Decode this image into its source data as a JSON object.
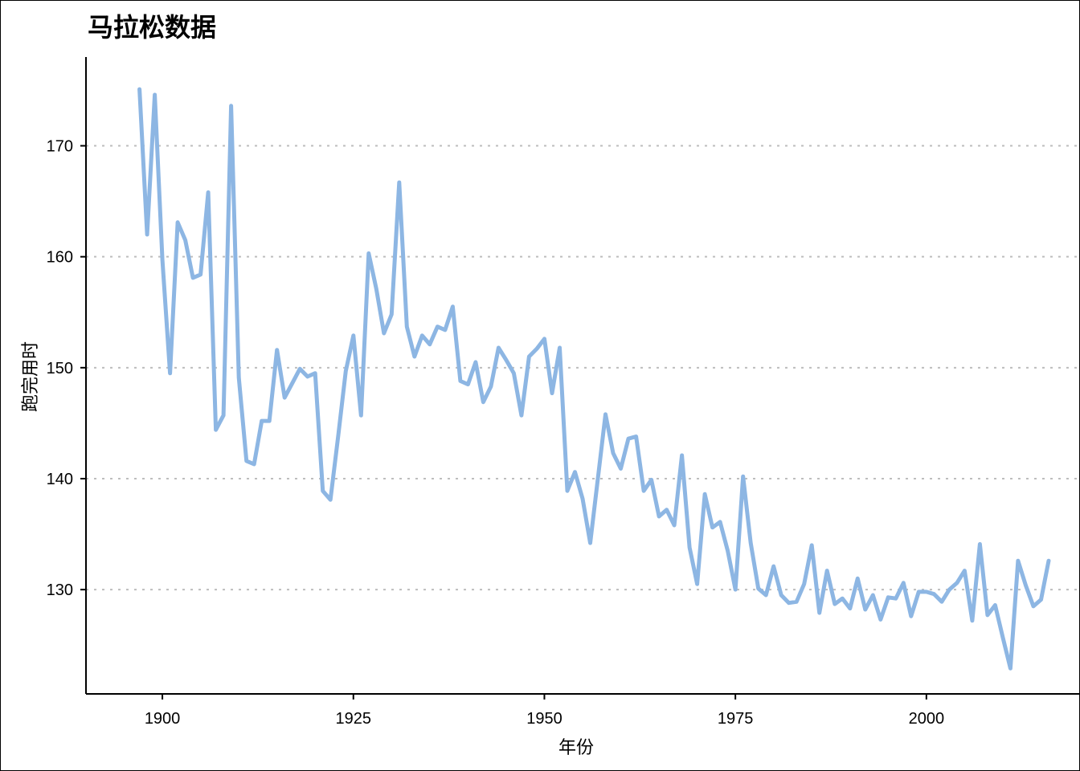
{
  "chart_data": {
    "type": "line",
    "title": "马拉松数据",
    "xlabel": "年份",
    "ylabel": "跑完用时",
    "xlim": [
      1890,
      2020
    ],
    "ylim": [
      120.6,
      178
    ],
    "x_ticks": [
      1900,
      1925,
      1950,
      1975,
      2000
    ],
    "y_ticks": [
      130,
      140,
      150,
      160,
      170
    ],
    "grid": "horizontal-dotted",
    "legend": "none",
    "color": "#8db6e3",
    "series": [
      {
        "x": [
          1897,
          1898,
          1899,
          1900,
          1901,
          1902,
          1903,
          1904,
          1905,
          1906,
          1907,
          1908,
          1909,
          1910,
          1911,
          1912,
          1913,
          1914,
          1915,
          1916,
          1917,
          1918,
          1919,
          1920,
          1921,
          1922,
          1923,
          1924,
          1925,
          1926,
          1927,
          1928,
          1929,
          1930,
          1931,
          1932,
          1933,
          1934,
          1935,
          1936,
          1937,
          1938,
          1939,
          1940,
          1941,
          1942,
          1943,
          1944,
          1945,
          1946,
          1947,
          1948,
          1949,
          1950,
          1951,
          1952,
          1953,
          1954,
          1955,
          1956,
          1957,
          1958,
          1959,
          1960,
          1961,
          1962,
          1963,
          1964,
          1965,
          1966,
          1967,
          1968,
          1969,
          1970,
          1971,
          1972,
          1973,
          1974,
          1975,
          1976,
          1977,
          1978,
          1979,
          1980,
          1981,
          1982,
          1983,
          1984,
          1985,
          1986,
          1987,
          1988,
          1989,
          1990,
          1991,
          1992,
          1993,
          1994,
          1995,
          1996,
          1997,
          1998,
          1999,
          2000,
          2001,
          2002,
          2003,
          2004,
          2005,
          2006,
          2007,
          2008,
          2009,
          2010,
          2011,
          2012,
          2013,
          2014,
          2015,
          2016
        ],
        "values": [
          175.1,
          162.0,
          174.6,
          159.7,
          149.5,
          163.1,
          161.5,
          158.1,
          158.4,
          165.8,
          144.4,
          145.7,
          173.6,
          149.1,
          141.6,
          141.3,
          145.2,
          145.2,
          151.6,
          147.3,
          148.6,
          149.9,
          149.2,
          149.5,
          138.9,
          138.1,
          143.8,
          149.7,
          152.9,
          145.7,
          160.3,
          157.1,
          153.1,
          154.8,
          166.7,
          153.7,
          151.0,
          152.9,
          152.1,
          153.7,
          153.4,
          155.5,
          148.8,
          148.5,
          150.5,
          146.9,
          148.3,
          151.8,
          150.7,
          149.5,
          145.7,
          151.0,
          151.7,
          152.6,
          147.7,
          151.8,
          138.9,
          140.6,
          138.2,
          134.2,
          140.0,
          145.8,
          142.3,
          140.9,
          143.6,
          143.8,
          138.9,
          139.9,
          136.6,
          137.2,
          135.8,
          142.1,
          133.8,
          130.5,
          138.6,
          135.6,
          136.1,
          133.5,
          130.0,
          140.2,
          134.2,
          130.1,
          129.5,
          132.1,
          129.5,
          128.8,
          128.9,
          130.5,
          134.0,
          127.9,
          131.7,
          128.7,
          129.2,
          128.3,
          131.0,
          128.2,
          129.5,
          127.3,
          129.3,
          129.2,
          130.6,
          127.6,
          129.8,
          129.8,
          129.6,
          128.9,
          130.0,
          130.6,
          131.7,
          127.2,
          134.1,
          127.7,
          128.6,
          125.7,
          122.9,
          132.6,
          130.4,
          128.5,
          129.1,
          132.6
        ]
      }
    ]
  }
}
